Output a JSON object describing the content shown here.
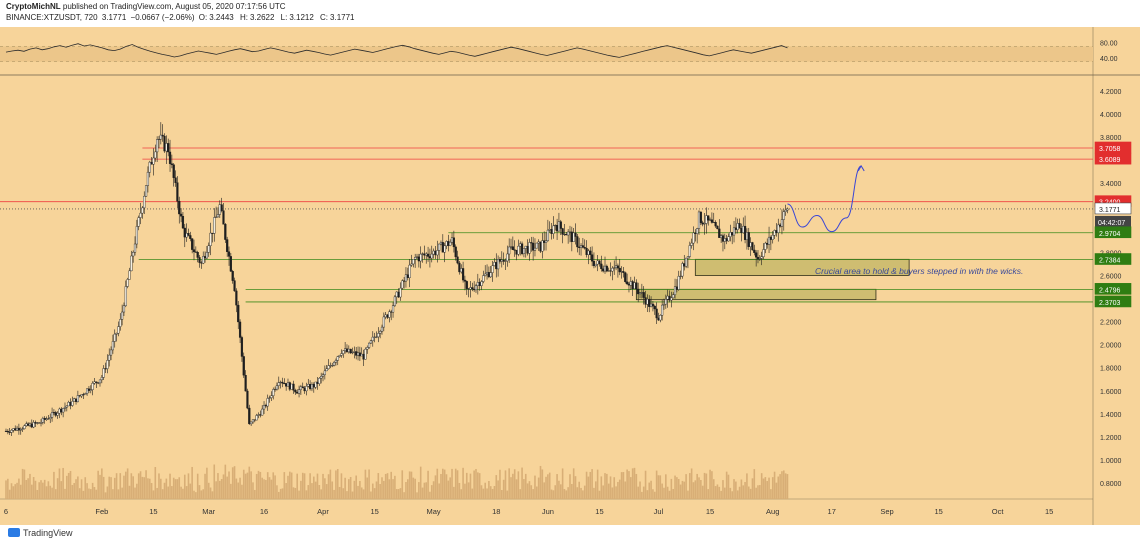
{
  "header": {
    "publisher": "CryptoMichNL",
    "published_text": "published on TradingView.com, August 05, 2020 07:17:56 UTC",
    "symbol": "BINANCE:XTZUSDT, 720",
    "last": "3.1771",
    "change": "−0.0667 (−2.06%)",
    "open": "3.2443",
    "high": "3.2622",
    "low": "3.1212",
    "close": "3.1771",
    "open_label": "O:",
    "high_label": "H:",
    "low_label": "L:",
    "close_label": "C:"
  },
  "footer": {
    "brand": "TradingView"
  },
  "colors": {
    "background": "#f7d49a",
    "candle": "#1e1e1e",
    "resistance": "#ef4040",
    "support": "#3c8a1a",
    "zone_fill": "#c8b96a",
    "projection": "#3a46d6",
    "rsi_band": "#ecc68a",
    "volume": "#d8ae76",
    "last_price_badge": "#444444",
    "support_badge": "#2f7d12",
    "resistance_badge": "#e22e2e"
  },
  "rsi_panel": {
    "ticks": [
      "80.00",
      "40.00"
    ],
    "upper": 70,
    "lower": 30,
    "values": [
      55,
      58,
      60,
      57,
      63,
      66,
      61,
      64,
      69,
      72,
      68,
      73,
      77,
      71,
      74,
      70,
      66,
      61,
      59,
      63,
      70,
      75,
      68,
      62,
      57,
      53,
      49,
      46,
      42,
      45,
      50,
      54,
      58,
      55,
      52,
      49,
      53,
      57,
      61,
      64,
      60,
      56,
      58,
      62,
      66,
      63,
      59,
      55,
      52,
      56,
      60,
      57,
      54,
      50,
      47,
      51,
      55,
      59,
      63,
      60,
      57,
      54,
      58,
      62,
      66,
      70,
      73,
      69,
      64,
      60,
      56,
      52,
      49,
      53,
      57,
      55,
      51,
      47,
      44,
      48,
      52,
      56,
      60,
      64,
      68,
      65,
      61,
      57,
      53,
      49,
      46,
      50,
      54,
      58,
      62,
      66,
      63,
      59,
      55,
      51,
      47,
      44,
      41,
      45,
      49,
      53,
      57,
      61,
      65,
      69,
      72,
      68,
      64,
      60,
      56,
      52,
      48,
      45,
      49,
      53,
      57,
      61,
      58,
      55,
      52,
      56,
      60,
      64,
      68,
      72,
      66
    ]
  },
  "chart_data": {
    "type": "candlestick",
    "title": "",
    "y_ticks": [
      "4.2000",
      "4.0000",
      "3.8000",
      "3.6000",
      "3.4000",
      "3.2000",
      "3.0000",
      "2.8000",
      "2.6000",
      "2.4000",
      "2.2000",
      "2.0000",
      "1.8000",
      "1.6000",
      "1.4000",
      "1.2000",
      "1.0000",
      "0.8000"
    ],
    "x_ticks": [
      "6",
      "Feb",
      "15",
      "Mar",
      "16",
      "Apr",
      "15",
      "May",
      "18",
      "Jun",
      "15",
      "Jul",
      "15",
      "Aug",
      "17",
      "Sep",
      "15",
      "Oct",
      "15"
    ],
    "ylim": [
      0.8,
      4.2
    ],
    "series": [
      {
        "name": "XTZUSDT",
        "price_path": [
          [
            "2020-01-06",
            1.25
          ],
          [
            "2020-01-15",
            1.32
          ],
          [
            "2020-01-24",
            1.5
          ],
          [
            "2020-02-01",
            1.72
          ],
          [
            "2020-02-06",
            2.2
          ],
          [
            "2020-02-10",
            2.9
          ],
          [
            "2020-02-13",
            3.4
          ],
          [
            "2020-02-16",
            3.8
          ],
          [
            "2020-02-19",
            3.7
          ],
          [
            "2020-02-23",
            3.0
          ],
          [
            "2020-02-28",
            2.7
          ],
          [
            "2020-03-04",
            3.2
          ],
          [
            "2020-03-08",
            2.5
          ],
          [
            "2020-03-12",
            1.3
          ],
          [
            "2020-03-16",
            1.45
          ],
          [
            "2020-03-20",
            1.7
          ],
          [
            "2020-03-25",
            1.6
          ],
          [
            "2020-03-30",
            1.65
          ],
          [
            "2020-04-06",
            1.95
          ],
          [
            "2020-04-12",
            1.9
          ],
          [
            "2020-04-20",
            2.35
          ],
          [
            "2020-04-26",
            2.75
          ],
          [
            "2020-05-01",
            2.8
          ],
          [
            "2020-05-06",
            2.9
          ],
          [
            "2020-05-10",
            2.45
          ],
          [
            "2020-05-15",
            2.6
          ],
          [
            "2020-05-22",
            2.82
          ],
          [
            "2020-05-30",
            2.85
          ],
          [
            "2020-06-03",
            3.05
          ],
          [
            "2020-06-08",
            2.92
          ],
          [
            "2020-06-14",
            2.7
          ],
          [
            "2020-06-20",
            2.65
          ],
          [
            "2020-06-26",
            2.45
          ],
          [
            "2020-07-01",
            2.25
          ],
          [
            "2020-07-06",
            2.52
          ],
          [
            "2020-07-12",
            3.1
          ],
          [
            "2020-07-15",
            3.05
          ],
          [
            "2020-07-19",
            2.9
          ],
          [
            "2020-07-23",
            3.05
          ],
          [
            "2020-07-28",
            2.75
          ],
          [
            "2020-08-01",
            2.95
          ],
          [
            "2020-08-05",
            3.18
          ]
        ],
        "last": 3.1771
      }
    ],
    "horizontal_levels": [
      {
        "value": 3.7058,
        "label": "3.7058",
        "kind": "resistance"
      },
      {
        "value": 3.6089,
        "label": "3.6089",
        "kind": "resistance"
      },
      {
        "value": 3.24,
        "label": "3.2400",
        "kind": "resistance"
      },
      {
        "value": 3.1771,
        "label": "3.1771",
        "kind": "last"
      },
      {
        "value": 2.9704,
        "label": "2.9704",
        "kind": "support"
      },
      {
        "value": 2.7384,
        "label": "2.7384",
        "kind": "support"
      },
      {
        "value": 2.4796,
        "label": "2.4796",
        "kind": "support"
      },
      {
        "value": 2.3703,
        "label": "2.3703",
        "kind": "support"
      }
    ],
    "countdown_label": "04:42:07",
    "zones": [
      {
        "from_date": "2020-07-11",
        "to_date": "2020-09-07",
        "low": 2.6,
        "high": 2.74
      },
      {
        "from_date": "2020-06-25",
        "to_date": "2020-08-29",
        "low": 2.39,
        "high": 2.48
      }
    ],
    "projection": [
      [
        "2020-08-05",
        3.22
      ],
      [
        "2020-08-09",
        3.02
      ],
      [
        "2020-08-13",
        3.12
      ],
      [
        "2020-08-17",
        2.98
      ],
      [
        "2020-08-21",
        3.1
      ],
      [
        "2020-08-25",
        3.55
      ]
    ],
    "annotation": "Crucial area to hold & buyers stepped in with the wicks."
  }
}
